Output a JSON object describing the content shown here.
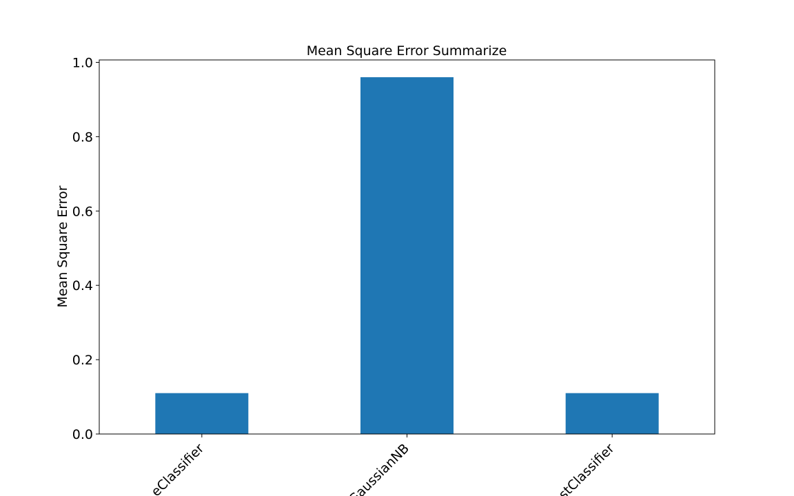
{
  "chart_data": {
    "type": "bar",
    "title": "Mean Square Error Summarize",
    "xlabel": "",
    "ylabel": "Mean Square Error",
    "categories": [
      "DecisionTreeClassifier",
      "GaussianNB",
      "RandomForestClassifier"
    ],
    "visible_tick_labels": [
      "eClassifier",
      "GaussianNB",
      "stClassifier"
    ],
    "values": [
      0.11,
      0.96,
      0.11
    ],
    "ylim": [
      0,
      1.0
    ],
    "yticks": [
      "0.0",
      "0.2",
      "0.4",
      "0.6",
      "0.8",
      "1.0"
    ],
    "grid": false,
    "legend": "none",
    "bar_color": "#1f77b4"
  }
}
